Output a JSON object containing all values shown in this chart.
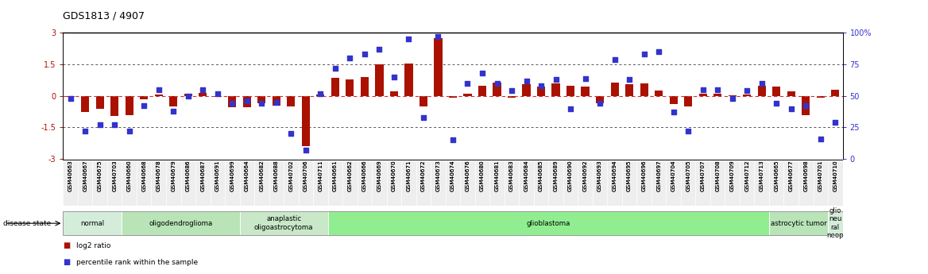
{
  "title": "GDS1813 / 4907",
  "samples": [
    "GSM40663",
    "GSM40667",
    "GSM40675",
    "GSM40703",
    "GSM40660",
    "GSM40668",
    "GSM40678",
    "GSM40679",
    "GSM40686",
    "GSM40687",
    "GSM40691",
    "GSM40699",
    "GSM40664",
    "GSM40682",
    "GSM40688",
    "GSM40702",
    "GSM40706",
    "GSM40711",
    "GSM40661",
    "GSM40662",
    "GSM40666",
    "GSM40669",
    "GSM40670",
    "GSM40671",
    "GSM40672",
    "GSM40673",
    "GSM40674",
    "GSM40676",
    "GSM40680",
    "GSM40681",
    "GSM40683",
    "GSM40684",
    "GSM40685",
    "GSM40689",
    "GSM40690",
    "GSM40692",
    "GSM40693",
    "GSM40694",
    "GSM40695",
    "GSM40696",
    "GSM40697",
    "GSM40704",
    "GSM40705",
    "GSM40707",
    "GSM40708",
    "GSM40709",
    "GSM40712",
    "GSM40713",
    "GSM40665",
    "GSM40677",
    "GSM40698",
    "GSM40701",
    "GSM40710"
  ],
  "log2_ratio": [
    -0.05,
    -0.75,
    -0.6,
    -0.95,
    -0.9,
    -0.15,
    0.05,
    -0.5,
    0.1,
    0.15,
    -0.05,
    -0.55,
    -0.55,
    -0.35,
    -0.45,
    -0.5,
    -2.4,
    0.05,
    0.85,
    0.8,
    0.9,
    1.5,
    0.2,
    1.55,
    -0.5,
    2.75,
    -0.1,
    0.1,
    0.5,
    0.65,
    -0.1,
    0.55,
    0.45,
    0.6,
    0.5,
    0.45,
    -0.35,
    0.65,
    0.55,
    0.6,
    0.25,
    -0.4,
    -0.5,
    0.1,
    0.1,
    0.02,
    0.05,
    0.5,
    0.45,
    0.2,
    -0.9,
    -0.1,
    0.3
  ],
  "percentile": [
    48,
    22,
    27,
    27,
    22,
    42,
    55,
    38,
    50,
    55,
    52,
    44,
    46,
    44,
    45,
    20,
    7,
    52,
    72,
    80,
    83,
    87,
    65,
    95,
    33,
    97,
    15,
    60,
    68,
    60,
    54,
    62,
    58,
    63,
    40,
    64,
    44,
    79,
    63,
    83,
    85,
    37,
    22,
    55,
    55,
    48,
    54,
    60,
    44,
    40,
    42,
    16,
    29
  ],
  "disease_groups": [
    {
      "label": "normal",
      "start": 0,
      "end": 4,
      "color": "#d4edda"
    },
    {
      "label": "oligodendroglioma",
      "start": 4,
      "end": 12,
      "color": "#b8e4b8"
    },
    {
      "label": "anaplastic\noligoastrocytoma",
      "start": 12,
      "end": 18,
      "color": "#c8e8c8"
    },
    {
      "label": "glioblastoma",
      "start": 18,
      "end": 48,
      "color": "#90ee90"
    },
    {
      "label": "astrocytic tumor",
      "start": 48,
      "end": 52,
      "color": "#b8e4b8"
    },
    {
      "label": "glio\nneu\nral\nneop",
      "start": 52,
      "end": 53,
      "color": "#d4edda"
    }
  ],
  "ylim_left": [
    -3,
    3
  ],
  "ylim_right": [
    0,
    100
  ],
  "yticks_left": [
    -3,
    -1.5,
    0,
    1.5,
    3
  ],
  "yticks_right": [
    0,
    25,
    50,
    75,
    100
  ],
  "bar_color": "#aa1100",
  "dot_color": "#3333cc",
  "zero_line_color": "#cc3333",
  "ref_line_color": "#555555",
  "bar_width": 0.55,
  "dot_size": 18,
  "background_color": "#ffffff"
}
